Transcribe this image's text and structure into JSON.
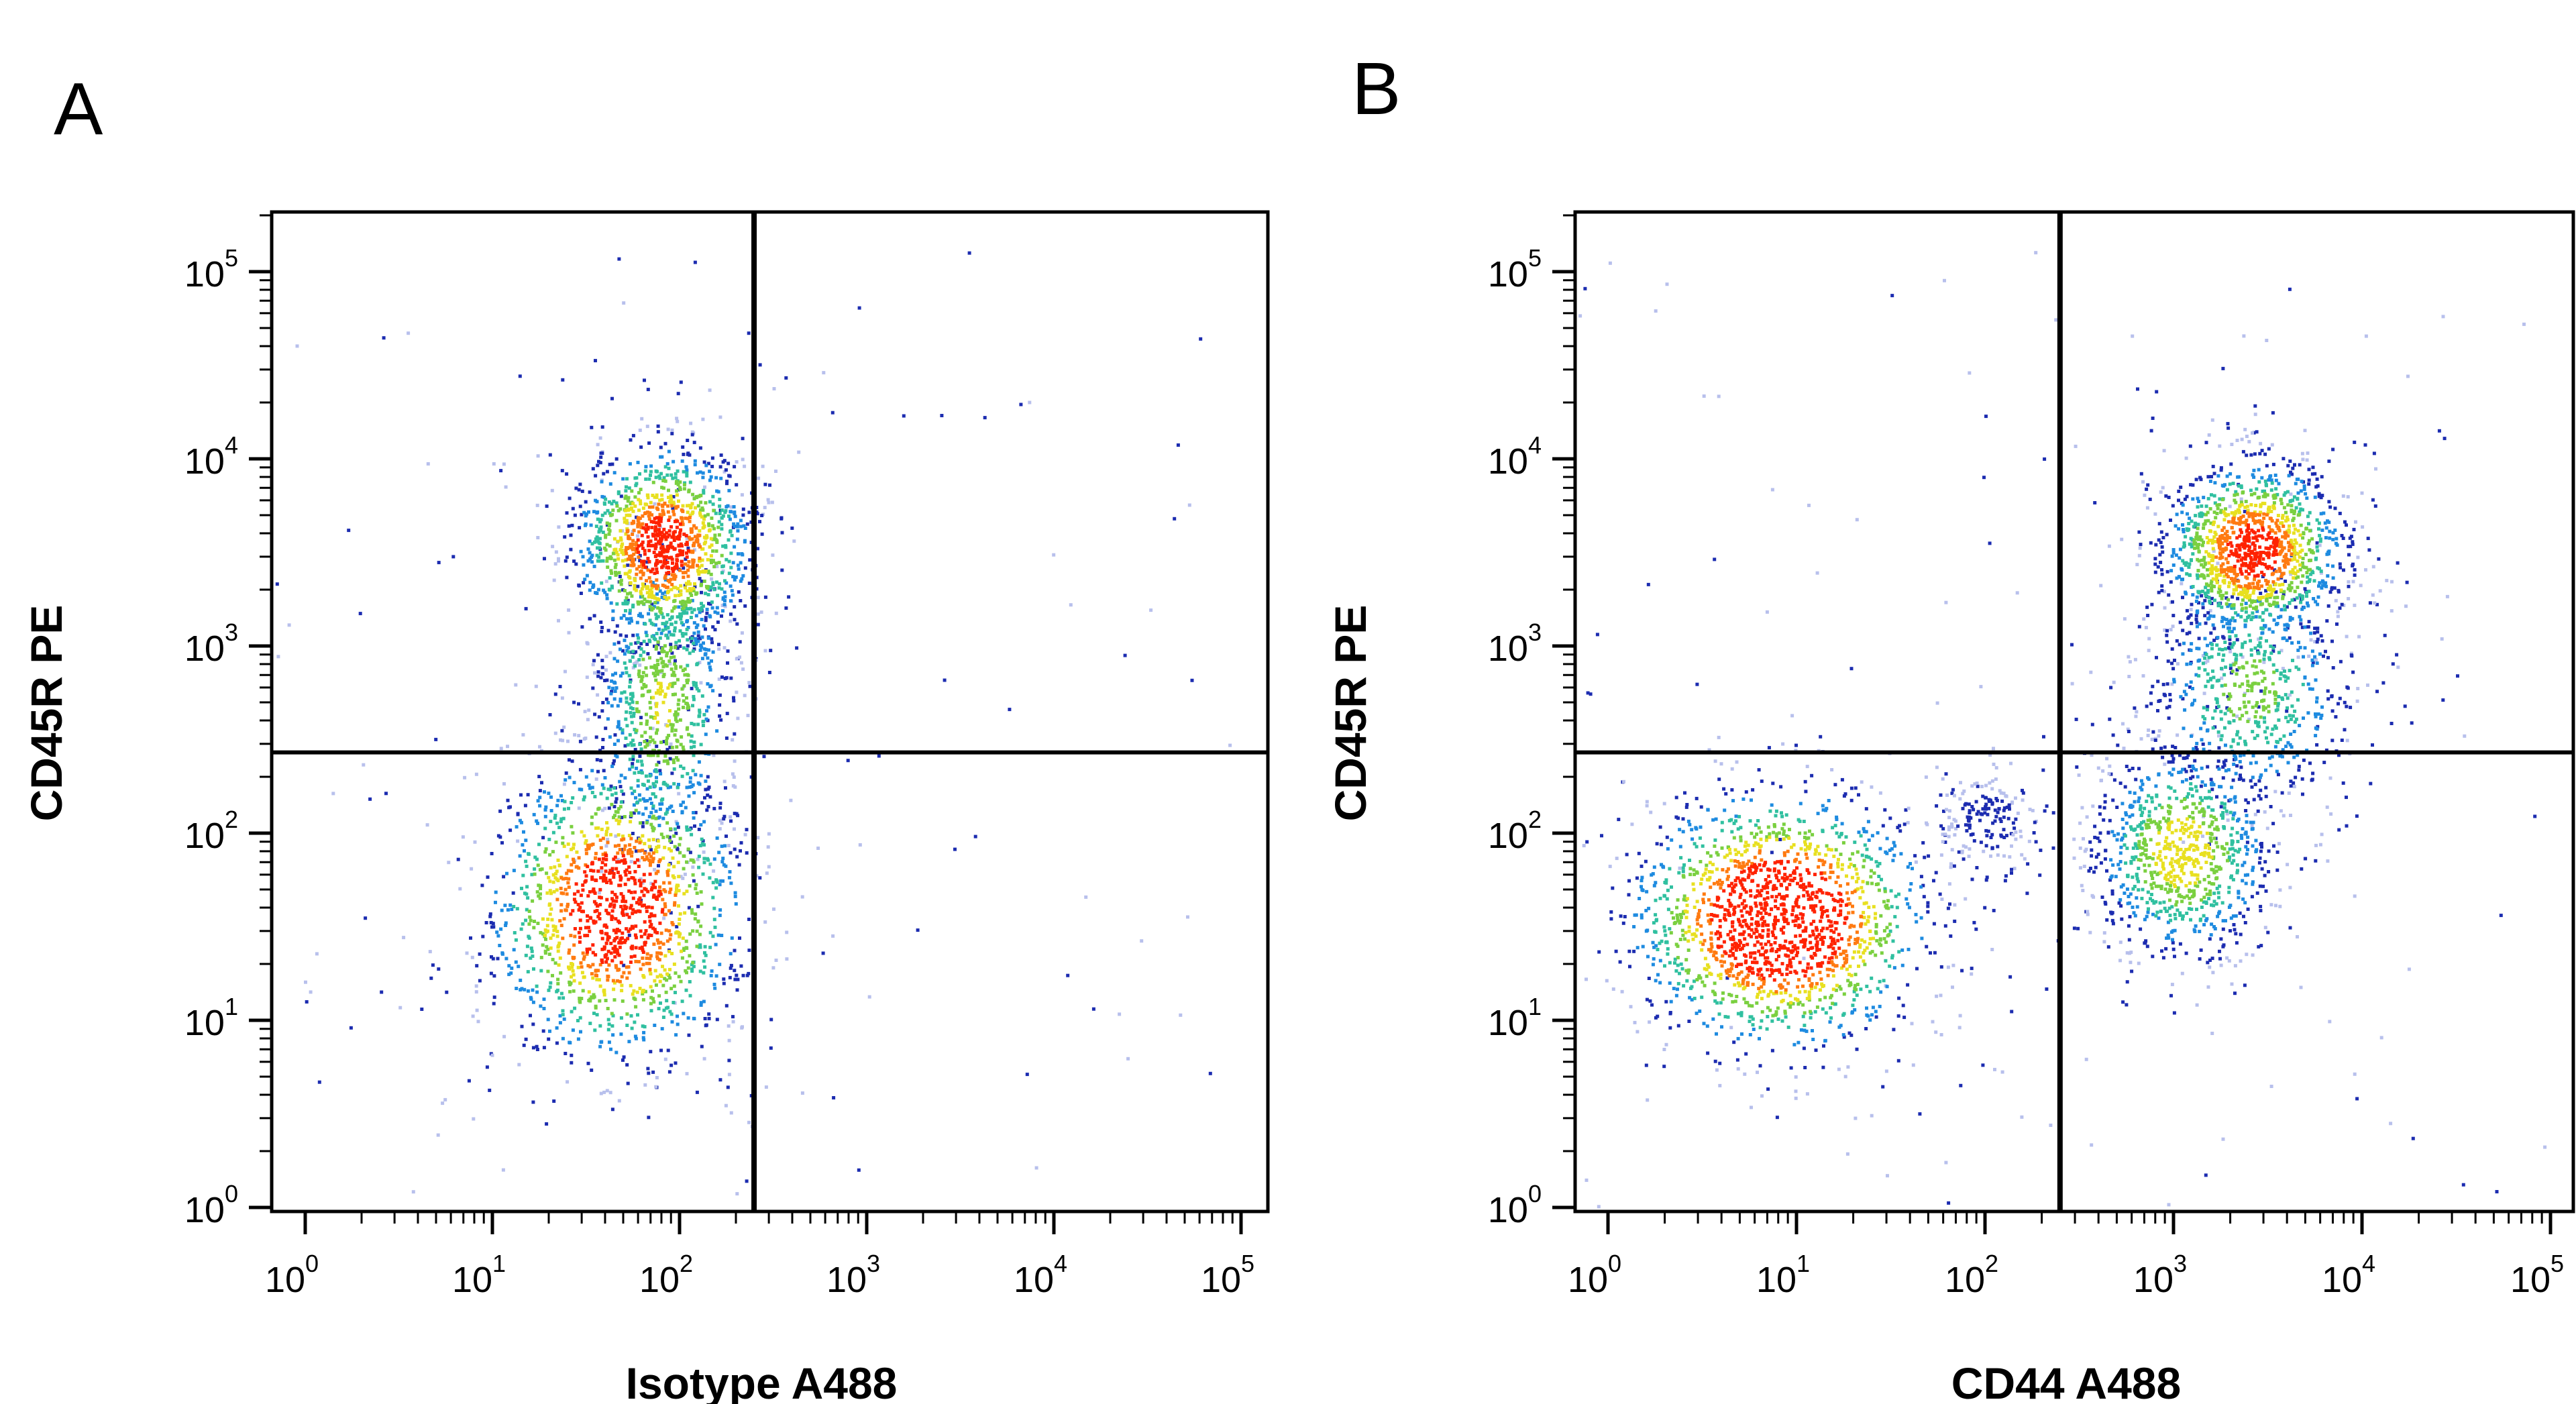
{
  "chart_data": [
    {
      "type": "scatter",
      "panel": "A",
      "xlabel": "Isotype A488",
      "ylabel": "CD45R PE",
      "xscale": "log",
      "yscale": "log",
      "xlim": [
        0.5,
        150000
      ],
      "ylim": [
        0.8,
        200000
      ],
      "x_ticks": [
        "10",
        "10",
        "10",
        "10",
        "10",
        "10"
      ],
      "x_tick_exponents": [
        "0",
        "1",
        "2",
        "3",
        "4",
        "5"
      ],
      "y_ticks": [
        "10",
        "10",
        "10",
        "10",
        "10",
        "10"
      ],
      "y_tick_exponents": [
        "0",
        "1",
        "2",
        "3",
        "4",
        "5"
      ],
      "gate": {
        "x": 250,
        "y": 270
      },
      "populations": [
        {
          "center": [
            80,
            3500
          ],
          "spread_log10": [
            0.25,
            0.28
          ],
          "relative_density": 1.0,
          "peak_color": "#ff2200"
        },
        {
          "center": [
            45,
            40
          ],
          "spread_log10": [
            0.35,
            0.42
          ],
          "relative_density": 1.1,
          "peak_color": "#40c040"
        },
        {
          "center": [
            80,
            500
          ],
          "spread_log10": [
            0.2,
            0.45
          ],
          "relative_density": 0.6,
          "peak_color": "#30c0a0"
        }
      ],
      "density_colormap": [
        "#b8c0ec",
        "#1c2cb0",
        "#1e8be0",
        "#30c0a0",
        "#7ad040",
        "#e8e020",
        "#ff7a10",
        "#ff2200"
      ]
    },
    {
      "type": "scatter",
      "panel": "B",
      "xlabel": "CD44 A488",
      "ylabel": "CD45R PE",
      "xscale": "log",
      "yscale": "log",
      "xlim": [
        0.5,
        150000
      ],
      "ylim": [
        0.8,
        200000
      ],
      "x_ticks": [
        "10",
        "10",
        "10",
        "10",
        "10",
        "10"
      ],
      "x_tick_exponents": [
        "0",
        "1",
        "2",
        "3",
        "4",
        "5"
      ],
      "y_ticks": [
        "10",
        "10",
        "10",
        "10",
        "10",
        "10"
      ],
      "y_tick_exponents": [
        "0",
        "1",
        "2",
        "3",
        "4",
        "5"
      ],
      "gate": {
        "x": 250,
        "y": 270
      },
      "populations": [
        {
          "center": [
            2600,
            3300
          ],
          "spread_log10": [
            0.25,
            0.25
          ],
          "relative_density": 1.0,
          "peak_color": "#ff2200"
        },
        {
          "center": [
            8,
            35
          ],
          "spread_log10": [
            0.4,
            0.35
          ],
          "relative_density": 1.3,
          "peak_color": "#40c040"
        },
        {
          "center": [
            1100,
            80
          ],
          "spread_log10": [
            0.25,
            0.3
          ],
          "relative_density": 0.7,
          "peak_color": "#40c040"
        },
        {
          "center": [
            2500,
            600
          ],
          "spread_log10": [
            0.3,
            0.35
          ],
          "relative_density": 0.5,
          "peak_color": "#30c0a0"
        },
        {
          "center": [
            100,
            120
          ],
          "spread_log10": [
            0.15,
            0.15
          ],
          "relative_density": 0.15,
          "peak_color": "#1e8be0"
        }
      ],
      "density_colormap": [
        "#b8c0ec",
        "#1c2cb0",
        "#1e8be0",
        "#30c0a0",
        "#7ad040",
        "#e8e020",
        "#ff7a10",
        "#ff2200"
      ]
    }
  ]
}
